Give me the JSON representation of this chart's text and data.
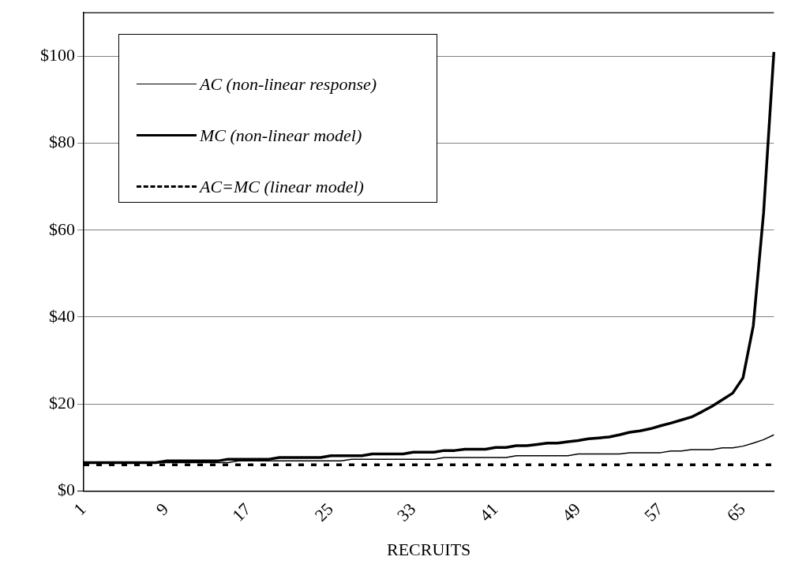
{
  "chart_data": {
    "type": "line",
    "xlabel": "RECRUITS",
    "categories": [
      "1",
      null,
      null,
      null,
      null,
      null,
      null,
      null,
      "9",
      null,
      null,
      null,
      null,
      null,
      null,
      null,
      "17",
      null,
      null,
      null,
      null,
      null,
      null,
      null,
      "25",
      null,
      null,
      null,
      null,
      null,
      null,
      null,
      "33",
      null,
      null,
      null,
      null,
      null,
      null,
      null,
      "41",
      null,
      null,
      null,
      null,
      null,
      null,
      null,
      "49",
      null,
      null,
      null,
      null,
      null,
      null,
      null,
      "57",
      null,
      null,
      null,
      null,
      null,
      null,
      null,
      "65",
      null,
      null,
      null
    ],
    "ylim": [
      0,
      110
    ],
    "yticks": [
      {
        "value": 0,
        "label": "$0"
      },
      {
        "value": 20,
        "label": "$20"
      },
      {
        "value": 40,
        "label": "$40"
      },
      {
        "value": 60,
        "label": "$60"
      },
      {
        "value": 80,
        "label": "$80"
      },
      {
        "value": 100,
        "label": "$100"
      }
    ],
    "grid": "y",
    "legend": "top left",
    "marker": "none",
    "series": [
      {
        "name": "AC (non-linear response)",
        "color": "#000000",
        "line_style": "solid",
        "values": [
          6.5,
          6.5,
          6.5,
          6.5,
          6.5,
          6.5,
          6.5,
          6.5,
          6.5,
          6.5,
          6.5,
          6.5,
          6.5,
          6.5,
          6.5,
          6.9,
          6.9,
          6.9,
          6.9,
          6.9,
          6.9,
          6.9,
          6.9,
          6.9,
          6.9,
          6.9,
          7.3,
          7.3,
          7.3,
          7.3,
          7.3,
          7.3,
          7.3,
          7.3,
          7.3,
          7.7,
          7.7,
          7.7,
          7.7,
          7.7,
          7.7,
          7.7,
          8.1,
          8.1,
          8.1,
          8.1,
          8.1,
          8.1,
          8.5,
          8.5,
          8.5,
          8.5,
          8.5,
          8.8,
          8.8,
          8.8,
          8.8,
          9.2,
          9.2,
          9.5,
          9.5,
          9.5,
          9.9,
          9.9,
          10.3,
          11,
          11.8,
          12.9
        ]
      },
      {
        "name": "MC (non-linear model)",
        "color": "#000000",
        "line_style": "solid",
        "values": [
          6.5,
          6.5,
          6.5,
          6.5,
          6.5,
          6.5,
          6.5,
          6.5,
          6.9,
          6.9,
          6.9,
          6.9,
          6.9,
          6.9,
          7.3,
          7.3,
          7.3,
          7.3,
          7.3,
          7.7,
          7.7,
          7.7,
          7.7,
          7.7,
          8.1,
          8.1,
          8.1,
          8.1,
          8.5,
          8.5,
          8.5,
          8.5,
          8.9,
          8.9,
          8.9,
          9.3,
          9.3,
          9.6,
          9.6,
          9.6,
          10,
          10,
          10.4,
          10.4,
          10.7,
          11,
          11,
          11.3,
          11.6,
          12,
          12.2,
          12.4,
          12.9,
          13.5,
          13.8,
          14.3,
          15,
          15.6,
          16.3,
          17,
          18.2,
          19.5,
          21,
          22.5,
          26,
          38,
          64,
          101
        ]
      },
      {
        "name": "AC=MC (linear model)",
        "color": "#000000",
        "line_style": "dashed",
        "values": [
          6,
          6,
          6,
          6,
          6,
          6,
          6,
          6,
          6,
          6,
          6,
          6,
          6,
          6,
          6,
          6,
          6,
          6,
          6,
          6,
          6,
          6,
          6,
          6,
          6,
          6,
          6,
          6,
          6,
          6,
          6,
          6,
          6,
          6,
          6,
          6,
          6,
          6,
          6,
          6,
          6,
          6,
          6,
          6,
          6,
          6,
          6,
          6,
          6,
          6,
          6,
          6,
          6,
          6,
          6,
          6,
          6,
          6,
          6,
          6,
          6,
          6,
          6,
          6,
          6,
          6,
          6,
          6
        ]
      }
    ]
  }
}
